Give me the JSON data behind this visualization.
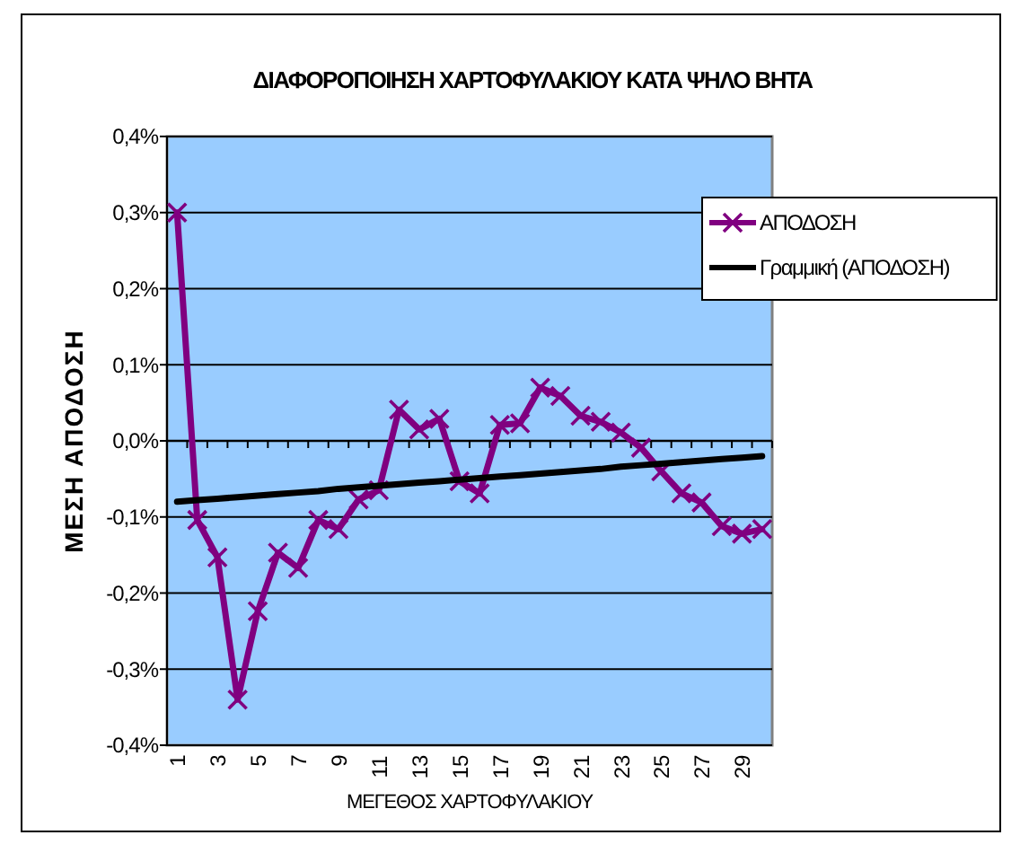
{
  "chart_data": {
    "type": "line",
    "title": "ΔΙΑΦΟΡΟΠΟΙΗΣΗ ΧΑΡΤΟΦΥΛΑΚΙΟΥ ΚΑΤΑ ΨΗΛΟ ΒΗΤΑ",
    "xlabel": "ΜΕΓΕΘΟΣ ΧΑΡΤΟΦΥΛΑΚΙΟΥ",
    "ylabel": "ΜΕΣΗ ΑΠΟΔΟΣΗ",
    "categories": [
      "1",
      null,
      "3",
      null,
      "5",
      null,
      "7",
      null,
      "9",
      null,
      "11",
      null,
      "13",
      null,
      "15",
      null,
      "17",
      null,
      "19",
      null,
      "21",
      null,
      "23",
      null,
      "25",
      null,
      "27",
      null,
      "29",
      null
    ],
    "series": [
      {
        "name": "ΑΠΟΔΟΣΗ",
        "color": "#800080",
        "marker": "cross",
        "values": [
          0.3,
          -0.104,
          -0.153,
          -0.34,
          -0.224,
          -0.147,
          -0.167,
          -0.104,
          -0.116,
          -0.077,
          -0.065,
          0.041,
          0.015,
          0.029,
          -0.053,
          -0.069,
          0.021,
          0.023,
          0.07,
          0.059,
          0.033,
          0.025,
          0.011,
          -0.009,
          -0.04,
          -0.069,
          -0.081,
          -0.112,
          -0.122,
          -0.116
        ]
      },
      {
        "name": "Γραμμική (ΑΠΟΔΟΣΗ)",
        "color": "#000000",
        "marker": "none",
        "values": [
          -0.08,
          -0.078,
          -0.076,
          -0.074,
          -0.072,
          -0.07,
          -0.068,
          -0.066,
          -0.063,
          -0.061,
          -0.059,
          -0.057,
          -0.055,
          -0.053,
          -0.051,
          -0.049,
          -0.047,
          -0.045,
          -0.043,
          -0.041,
          -0.039,
          -0.037,
          -0.034,
          -0.032,
          -0.03,
          -0.028,
          -0.026,
          -0.024,
          -0.022,
          -0.02
        ]
      }
    ],
    "ylim": [
      -0.4,
      0.4
    ],
    "yticks": [
      {
        "value": -0.4,
        "label": "-0,4%"
      },
      {
        "value": -0.3,
        "label": "-0,3%"
      },
      {
        "value": -0.2,
        "label": "-0,2%"
      },
      {
        "value": -0.1,
        "label": "-0,1%"
      },
      {
        "value": 0,
        "label": "0,0%"
      },
      {
        "value": 0.1,
        "label": "0,1%"
      },
      {
        "value": 0.2,
        "label": "0,2%"
      },
      {
        "value": 0.3,
        "label": "0,3%"
      },
      {
        "value": 0.4,
        "label": "0,4%"
      }
    ],
    "grid": "y",
    "legend": "top right",
    "line_style": "solid"
  }
}
